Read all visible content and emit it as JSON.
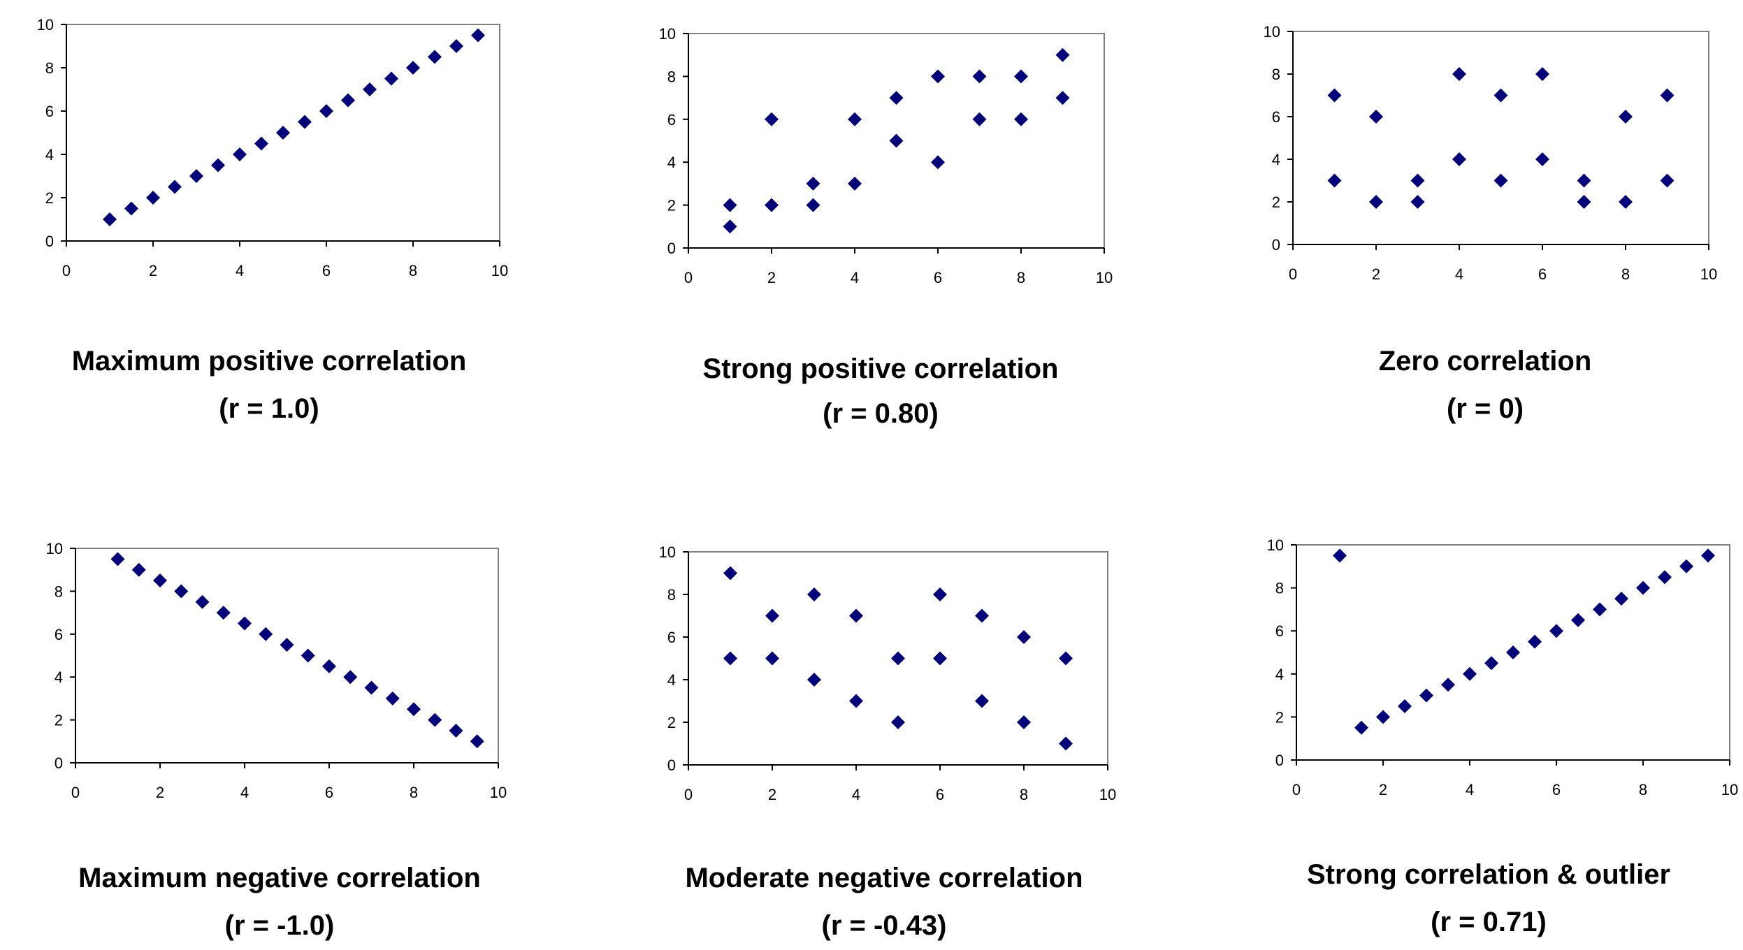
{
  "colors": {
    "marker": "#00007a",
    "axis": "#000000",
    "frame": "#808080",
    "background": "#ffffff"
  },
  "chart_data": [
    {
      "type": "scatter",
      "title": "Maximum positive correlation",
      "subtitle": "(r = 1.0)",
      "xlim": [
        0,
        10
      ],
      "ylim": [
        0,
        10
      ],
      "xticks": [
        "0",
        "2",
        "4",
        "6",
        "8",
        "10"
      ],
      "yticks": [
        "0",
        "2",
        "4",
        "6",
        "8",
        "10"
      ],
      "grid": false,
      "points": [
        [
          1,
          1
        ],
        [
          1.5,
          1.5
        ],
        [
          2,
          2
        ],
        [
          2.5,
          2.5
        ],
        [
          3,
          3
        ],
        [
          3.5,
          3.5
        ],
        [
          4,
          4
        ],
        [
          4.5,
          4.5
        ],
        [
          5,
          5
        ],
        [
          5.5,
          5.5
        ],
        [
          6,
          6
        ],
        [
          6.5,
          6.5
        ],
        [
          7,
          7
        ],
        [
          7.5,
          7.5
        ],
        [
          8,
          8
        ],
        [
          8.5,
          8.5
        ],
        [
          9,
          9
        ],
        [
          9.5,
          9.5
        ]
      ]
    },
    {
      "type": "scatter",
      "title": "Strong positive correlation",
      "subtitle": "(r = 0.80)",
      "xlim": [
        0,
        10
      ],
      "ylim": [
        0,
        10
      ],
      "xticks": [
        "0",
        "2",
        "4",
        "6",
        "8",
        "10"
      ],
      "yticks": [
        "0",
        "2",
        "4",
        "6",
        "8",
        "10"
      ],
      "grid": false,
      "points": [
        [
          1,
          1
        ],
        [
          1,
          2
        ],
        [
          2,
          2
        ],
        [
          2,
          6
        ],
        [
          3,
          2
        ],
        [
          3,
          3
        ],
        [
          4,
          3
        ],
        [
          4,
          6
        ],
        [
          5,
          5
        ],
        [
          5,
          7
        ],
        [
          6,
          4
        ],
        [
          6,
          8
        ],
        [
          7,
          6
        ],
        [
          7,
          8
        ],
        [
          8,
          6
        ],
        [
          8,
          8
        ],
        [
          9,
          7
        ],
        [
          9,
          9
        ]
      ]
    },
    {
      "type": "scatter",
      "title": "Zero correlation",
      "subtitle": "(r = 0)",
      "xlim": [
        0,
        10
      ],
      "ylim": [
        0,
        10
      ],
      "xticks": [
        "0",
        "2",
        "4",
        "6",
        "8",
        "10"
      ],
      "yticks": [
        "0",
        "2",
        "4",
        "6",
        "8",
        "10"
      ],
      "grid": false,
      "points": [
        [
          1,
          3
        ],
        [
          1,
          7
        ],
        [
          2,
          2
        ],
        [
          2,
          6
        ],
        [
          3,
          2
        ],
        [
          3,
          3
        ],
        [
          4,
          4
        ],
        [
          4,
          8
        ],
        [
          5,
          3
        ],
        [
          5,
          7
        ],
        [
          6,
          4
        ],
        [
          6,
          8
        ],
        [
          7,
          2
        ],
        [
          7,
          3
        ],
        [
          8,
          2
        ],
        [
          8,
          6
        ],
        [
          9,
          3
        ],
        [
          9,
          7
        ]
      ]
    },
    {
      "type": "scatter",
      "title": "Maximum negative correlation",
      "subtitle": "(r = -1.0)",
      "xlim": [
        0,
        10
      ],
      "ylim": [
        0,
        10
      ],
      "xticks": [
        "0",
        "2",
        "4",
        "6",
        "8",
        "10"
      ],
      "yticks": [
        "0",
        "2",
        "4",
        "6",
        "8",
        "10"
      ],
      "grid": false,
      "points": [
        [
          1,
          9.5
        ],
        [
          1.5,
          9
        ],
        [
          2,
          8.5
        ],
        [
          2.5,
          8
        ],
        [
          3,
          7.5
        ],
        [
          3.5,
          7
        ],
        [
          4,
          6.5
        ],
        [
          4.5,
          6
        ],
        [
          5,
          5.5
        ],
        [
          5.5,
          5
        ],
        [
          6,
          4.5
        ],
        [
          6.5,
          4
        ],
        [
          7,
          3.5
        ],
        [
          7.5,
          3
        ],
        [
          8,
          2.5
        ],
        [
          8.5,
          2
        ],
        [
          9,
          1.5
        ],
        [
          9.5,
          1
        ]
      ]
    },
    {
      "type": "scatter",
      "title": "Moderate negative correlation",
      "subtitle": "(r = -0.43)",
      "xlim": [
        0,
        10
      ],
      "ylim": [
        0,
        10
      ],
      "xticks": [
        "0",
        "2",
        "4",
        "6",
        "8",
        "10"
      ],
      "yticks": [
        "0",
        "2",
        "4",
        "6",
        "8",
        "10"
      ],
      "grid": false,
      "points": [
        [
          1,
          9
        ],
        [
          1,
          5
        ],
        [
          2,
          7
        ],
        [
          2,
          5
        ],
        [
          3,
          8
        ],
        [
          3,
          4
        ],
        [
          4,
          7
        ],
        [
          4,
          3
        ],
        [
          5,
          5
        ],
        [
          5,
          2
        ],
        [
          6,
          8
        ],
        [
          6,
          5
        ],
        [
          7,
          7
        ],
        [
          7,
          3
        ],
        [
          8,
          6
        ],
        [
          8,
          2
        ],
        [
          9,
          5
        ],
        [
          9,
          1
        ]
      ]
    },
    {
      "type": "scatter",
      "title": "Strong correlation & outlier",
      "subtitle": "(r = 0.71)",
      "xlim": [
        0,
        10
      ],
      "ylim": [
        0,
        10
      ],
      "xticks": [
        "0",
        "2",
        "4",
        "6",
        "8",
        "10"
      ],
      "yticks": [
        "0",
        "2",
        "4",
        "6",
        "8",
        "10"
      ],
      "grid": false,
      "points": [
        [
          1,
          9.5
        ],
        [
          1.5,
          1.5
        ],
        [
          2,
          2
        ],
        [
          2.5,
          2.5
        ],
        [
          3,
          3
        ],
        [
          3.5,
          3.5
        ],
        [
          4,
          4
        ],
        [
          4.5,
          4.5
        ],
        [
          5,
          5
        ],
        [
          5.5,
          5.5
        ],
        [
          6,
          6
        ],
        [
          6.5,
          6.5
        ],
        [
          7,
          7
        ],
        [
          7.5,
          7.5
        ],
        [
          8,
          8
        ],
        [
          8.5,
          8.5
        ],
        [
          9,
          9
        ],
        [
          9.5,
          9.5
        ]
      ]
    }
  ]
}
